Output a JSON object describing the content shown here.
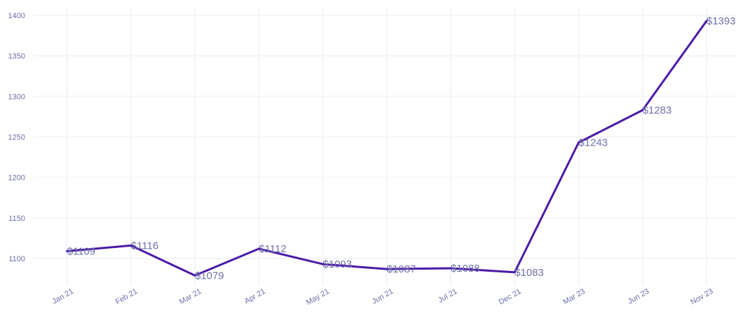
{
  "chart_data": {
    "type": "line",
    "categories": [
      "Jan 21",
      "Feb 21",
      "Mar 21",
      "Apr 21",
      "May 21",
      "Jun 21",
      "Jul 21",
      "Dec 21",
      "Mar 23",
      "Jun 23",
      "Nov 23"
    ],
    "values": [
      1109,
      1116,
      1079,
      1112,
      1093,
      1087,
      1088,
      1083,
      1243,
      1283,
      1393
    ],
    "data_labels": [
      "$1109",
      "$1116",
      "$1079",
      "$1112",
      "$1093",
      "$1087",
      "$1088",
      "$1083",
      "$1243",
      "$1283",
      "$1393"
    ],
    "y_ticks": [
      1100,
      1150,
      1200,
      1250,
      1300,
      1350,
      1400
    ],
    "ylim": [
      1064,
      1408
    ],
    "grid": true,
    "legend": "none",
    "colors": {
      "line": "#4a1aa8",
      "tick_text": "#6b6fa8",
      "label_text": "#6e72a8",
      "grid": "#f4f4fa"
    }
  }
}
